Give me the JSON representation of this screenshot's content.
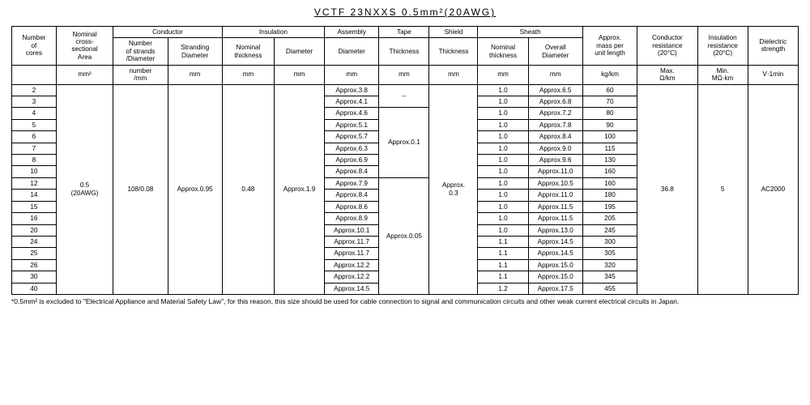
{
  "title": "VCTF  23NXXS    0.5mm²(20AWG)",
  "footnote": "*0.5mm² is excluded to \"Electrical Appliance and Material Safety Law\", for this reason, this size should be used for cable connection to signal and communication circuits and other weak current electrical circuits in Japan.",
  "col_widths_pct": [
    5.3,
    6.8,
    6.5,
    6.5,
    6.2,
    6.0,
    6.5,
    6.0,
    5.8,
    6.0,
    6.5,
    6.5,
    7.2,
    6.0,
    6.0
  ],
  "head": {
    "group_conductor": "Conductor",
    "group_insulation": "Insulation",
    "group_assembly": "Assembly",
    "group_tape": "Tape",
    "group_shield": "Shield",
    "group_sheath": "Sheath",
    "num_cores": "Number<br>of<br>cores",
    "nominal_area": "Nominal<br>cross-<br>sectional<br>Area",
    "strands": "Number<br>of strands<br>/Diameter",
    "stranding_dia": "Stranding<br>Diameter",
    "nom_thick": "Nominal<br>thickness",
    "diameter": "Diameter",
    "assembly_dia": "Diameter",
    "tape_thick": "Thickness",
    "shield_thick": "Thickness",
    "sheath_nom": "Nominal<br>thickness",
    "sheath_overall": "Overall<br>Diameter",
    "mass": "Approx.<br>mass per<br>unit length",
    "cond_res": "Conductor<br>resistance<br>(20°C)",
    "ins_res": "Insulation<br>resistance<br>(20°C)",
    "dielec": "Dielectric<br>strength",
    "u_mm2": "mm²",
    "u_num": "number<br>/mm",
    "u_mm": "mm",
    "u_kgkm": "kg/km",
    "u_max": "Max.<br>Ω/km",
    "u_min": "Min.<br>MΩ·km",
    "u_v1min": "V·1min"
  },
  "shared": {
    "area": "0.5<br>(20AWG)",
    "strands": "108/0.08",
    "stranding": "Approx.0.95",
    "ins_thick": "0.48",
    "ins_dia": "Approx.1.9",
    "shield": "Approx.<br>0.3",
    "cond_res": "36.8",
    "ins_res": "5",
    "dielec": "AC2000"
  },
  "tape_groups": [
    {
      "label": "--",
      "span": 2
    },
    {
      "label": "Approx.0.1",
      "span": 6
    },
    {
      "label": "Approx.0.05",
      "span": 11
    }
  ],
  "rows": [
    {
      "cores": "2",
      "asm": "Approx.3.8",
      "sn": "1.0",
      "so": "Approx.6.5",
      "m": "60"
    },
    {
      "cores": "3",
      "asm": "Approx.4.1",
      "sn": "1.0",
      "so": "Approx.6.8",
      "m": "70"
    },
    {
      "cores": "4",
      "asm": "Approx.4.6",
      "sn": "1.0",
      "so": "Approx.7.2",
      "m": "80"
    },
    {
      "cores": "5",
      "asm": "Approx.5.1",
      "sn": "1.0",
      "so": "Approx.7.8",
      "m": "90"
    },
    {
      "cores": "6",
      "asm": "Approx.5.7",
      "sn": "1.0",
      "so": "Approx.8.4",
      "m": "100"
    },
    {
      "cores": "7",
      "asm": "Approx.6.3",
      "sn": "1.0",
      "so": "Approx.9.0",
      "m": "115"
    },
    {
      "cores": "8",
      "asm": "Approx.6.9",
      "sn": "1.0",
      "so": "Approx.9.6",
      "m": "130"
    },
    {
      "cores": "10",
      "asm": "Approx.8.4",
      "sn": "1.0",
      "so": "Approx.11.0",
      "m": "160"
    },
    {
      "cores": "12",
      "asm": "Approx.7.9",
      "sn": "1.0",
      "so": "Approx.10.5",
      "m": "160"
    },
    {
      "cores": "14",
      "asm": "Approx.8.4",
      "sn": "1.0",
      "so": "Approx.11.0",
      "m": "180"
    },
    {
      "cores": "15",
      "asm": "Approx.8.6",
      "sn": "1.0",
      "so": "Approx.11.5",
      "m": "195"
    },
    {
      "cores": "16",
      "asm": "Approx.8.9",
      "sn": "1.0",
      "so": "Approx.11.5",
      "m": "205"
    },
    {
      "cores": "20",
      "asm": "Approx.10.1",
      "sn": "1.0",
      "so": "Approx.13.0",
      "m": "245"
    },
    {
      "cores": "24",
      "asm": "Approx.11.7",
      "sn": "1.1",
      "so": "Approx.14.5",
      "m": "300"
    },
    {
      "cores": "25",
      "asm": "Approx.11.7",
      "sn": "1.1",
      "so": "Approx.14.5",
      "m": "305"
    },
    {
      "cores": "26",
      "asm": "Approx.12.2",
      "sn": "1.1",
      "so": "Approx.15.0",
      "m": "320"
    },
    {
      "cores": "30",
      "asm": "Approx.12.2",
      "sn": "1.1",
      "so": "Approx.15.0",
      "m": "345"
    },
    {
      "cores": "40",
      "asm": "Approx.14.5",
      "sn": "1.2",
      "so": "Approx.17.5",
      "m": "455"
    }
  ]
}
